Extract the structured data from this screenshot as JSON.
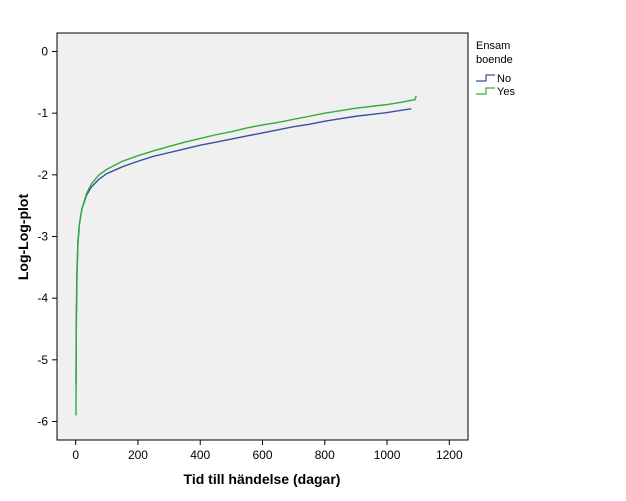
{
  "chart_data": {
    "type": "line",
    "title": "",
    "xlabel": "Tid till händelse (dagar)",
    "ylabel": "Log-Log-plot",
    "xlim": [
      -60,
      1260
    ],
    "ylim": [
      -6.3,
      0.3
    ],
    "xticks": [
      0,
      200,
      400,
      600,
      800,
      1000,
      1200
    ],
    "yticks": [
      0,
      -1,
      -2,
      -3,
      -4,
      -5,
      -6
    ],
    "grid": false,
    "plot_background": "#f0f0f0",
    "legend": {
      "title_lines": [
        "Ensam",
        "boende"
      ],
      "placement": "right"
    },
    "series": [
      {
        "name": "No",
        "color": "#3a4f9e",
        "points": [
          [
            1,
            -5.4
          ],
          [
            2,
            -4.3
          ],
          [
            4,
            -3.6
          ],
          [
            7,
            -3.1
          ],
          [
            12,
            -2.8
          ],
          [
            20,
            -2.55
          ],
          [
            35,
            -2.33
          ],
          [
            50,
            -2.2
          ],
          [
            75,
            -2.07
          ],
          [
            100,
            -1.98
          ],
          [
            150,
            -1.87
          ],
          [
            200,
            -1.78
          ],
          [
            250,
            -1.7
          ],
          [
            300,
            -1.64
          ],
          [
            350,
            -1.58
          ],
          [
            400,
            -1.52
          ],
          [
            450,
            -1.47
          ],
          [
            500,
            -1.42
          ],
          [
            550,
            -1.37
          ],
          [
            600,
            -1.32
          ],
          [
            650,
            -1.27
          ],
          [
            700,
            -1.22
          ],
          [
            750,
            -1.18
          ],
          [
            800,
            -1.13
          ],
          [
            850,
            -1.09
          ],
          [
            900,
            -1.05
          ],
          [
            950,
            -1.02
          ],
          [
            1000,
            -0.99
          ],
          [
            1050,
            -0.95
          ],
          [
            1078,
            -0.93
          ]
        ]
      },
      {
        "name": "Yes",
        "color": "#2ead3a",
        "points": [
          [
            1,
            -5.9
          ],
          [
            2,
            -4.5
          ],
          [
            4,
            -3.7
          ],
          [
            7,
            -3.15
          ],
          [
            12,
            -2.8
          ],
          [
            20,
            -2.55
          ],
          [
            35,
            -2.3
          ],
          [
            50,
            -2.15
          ],
          [
            75,
            -2.0
          ],
          [
            100,
            -1.91
          ],
          [
            150,
            -1.78
          ],
          [
            200,
            -1.69
          ],
          [
            250,
            -1.61
          ],
          [
            300,
            -1.54
          ],
          [
            350,
            -1.47
          ],
          [
            400,
            -1.41
          ],
          [
            450,
            -1.35
          ],
          [
            500,
            -1.3
          ],
          [
            550,
            -1.24
          ],
          [
            600,
            -1.19
          ],
          [
            650,
            -1.15
          ],
          [
            700,
            -1.1
          ],
          [
            750,
            -1.05
          ],
          [
            800,
            -1.0
          ],
          [
            850,
            -0.96
          ],
          [
            900,
            -0.92
          ],
          [
            950,
            -0.89
          ],
          [
            1000,
            -0.86
          ],
          [
            1050,
            -0.82
          ],
          [
            1080,
            -0.79
          ],
          [
            1090,
            -0.78
          ],
          [
            1092,
            -0.74
          ],
          [
            1094,
            -0.72
          ]
        ]
      }
    ]
  }
}
